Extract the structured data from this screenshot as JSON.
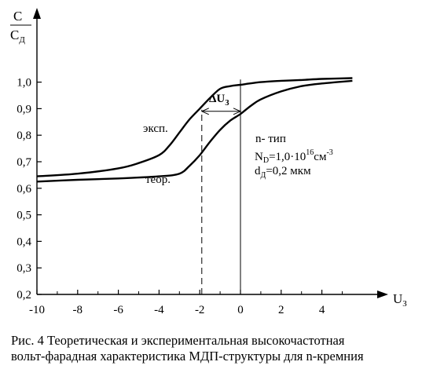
{
  "chart_data": {
    "type": "line",
    "title": "",
    "ylabel": {
      "numerator": "C",
      "denominator": "C",
      "denominator_sub": "Д"
    },
    "xlabel": {
      "main": "U",
      "sub": "З"
    },
    "xlim": [
      -10,
      6
    ],
    "ylim": [
      0.2,
      1.05
    ],
    "x_ticks": [
      -10,
      -8,
      -6,
      -4,
      -2,
      0,
      2,
      4
    ],
    "y_ticks": [
      0.2,
      0.3,
      0.4,
      0.5,
      0.6,
      0.7,
      0.8,
      0.9,
      1.0
    ],
    "x_tick_labels": [
      "-10",
      "-8",
      "-6",
      "-4",
      "-2",
      "0",
      "2",
      "4"
    ],
    "y_tick_labels": [
      "0,2",
      "0,3",
      "0,4",
      "0,5",
      "0,6",
      "0,7",
      "0,8",
      "0,9",
      "1,0"
    ],
    "grid": false,
    "series": [
      {
        "name": "эксп.",
        "points": [
          [
            -10,
            0.645
          ],
          [
            -8,
            0.655
          ],
          [
            -6,
            0.675
          ],
          [
            -5,
            0.695
          ],
          [
            -4,
            0.725
          ],
          [
            -3.5,
            0.76
          ],
          [
            -3,
            0.81
          ],
          [
            -2.5,
            0.86
          ],
          [
            -2,
            0.9
          ],
          [
            -1.5,
            0.94
          ],
          [
            -1,
            0.975
          ],
          [
            -0.5,
            0.985
          ],
          [
            0,
            0.99
          ],
          [
            1,
            1.0
          ],
          [
            2,
            1.005
          ],
          [
            3,
            1.008
          ],
          [
            4,
            1.012
          ],
          [
            5.5,
            1.015
          ]
        ]
      },
      {
        "name": "теор.",
        "points": [
          [
            -10,
            0.625
          ],
          [
            -8,
            0.632
          ],
          [
            -6,
            0.637
          ],
          [
            -4,
            0.645
          ],
          [
            -3,
            0.655
          ],
          [
            -2.5,
            0.685
          ],
          [
            -2,
            0.725
          ],
          [
            -1.5,
            0.775
          ],
          [
            -1,
            0.82
          ],
          [
            -0.5,
            0.855
          ],
          [
            0,
            0.88
          ],
          [
            0.5,
            0.91
          ],
          [
            1,
            0.935
          ],
          [
            2,
            0.965
          ],
          [
            3,
            0.985
          ],
          [
            4,
            0.995
          ],
          [
            5.5,
            1.005
          ]
        ]
      }
    ],
    "annotations": {
      "delta_label": "ΔU",
      "delta_sub": "З",
      "delta_from": -1.9,
      "delta_to": 0,
      "delta_y": 0.89,
      "exp_label": "эксп.",
      "theor_label": "теор.",
      "param_type": "n- тип",
      "param_nd_prefix": "N",
      "param_nd_sub": "D",
      "param_nd_value": "=1,0·10",
      "param_nd_exp": "16",
      "param_nd_unit": "см",
      "param_nd_unit_exp": "-3",
      "param_d_prefix": "d",
      "param_d_sub": "Д",
      "param_d_value": "=0,2 мкм"
    }
  },
  "caption": {
    "line1": "Рис. 4 Теоретическая и экспериментальная высокочастотная",
    "line2": "вольт-фарадная характеристика МДП-структуры для n-кремния"
  }
}
